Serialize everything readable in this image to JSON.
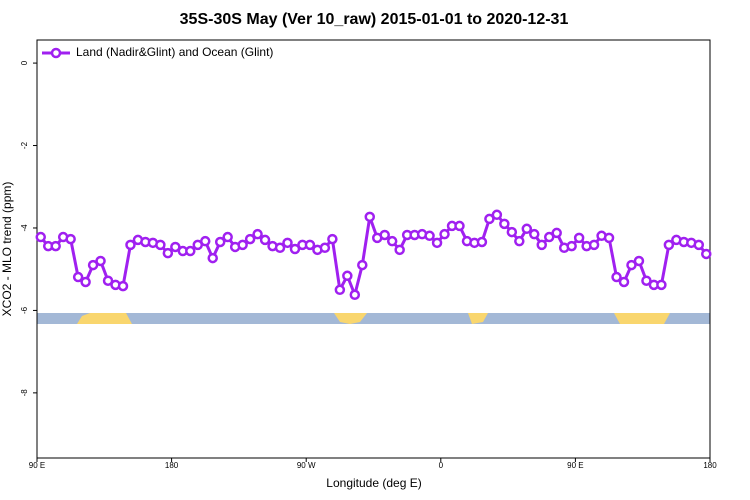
{
  "chart_data": {
    "type": "line",
    "title": "35S-30S May (Ver 10_raw)   2015-01-01 to 2020-12-31",
    "x_label": "Longitude (deg E)",
    "y_label": "XCO2 - MLO trend (ppm)",
    "legend": "top-left",
    "xlim": [
      90,
      540
    ],
    "xticks": [
      {
        "value": 90,
        "label": "90 E"
      },
      180,
      {
        "value": 270,
        "label": "90 W"
      },
      {
        "value": 360,
        "label": "0"
      },
      {
        "value": 450,
        "label": "90 E"
      },
      {
        "value": 540,
        "label": "180"
      }
    ],
    "ylim": [
      -9.58,
      0.56
    ],
    "yticks": [
      0,
      -2,
      -4,
      -6,
      -8
    ],
    "x": [
      92.5,
      97.5,
      102.5,
      107.5,
      112.5,
      117.5,
      122.5,
      127.5,
      132.5,
      137.5,
      142.5,
      147.5,
      152.5,
      157.5,
      162.5,
      167.5,
      172.5,
      177.5,
      182.5,
      187.5,
      192.5,
      197.5,
      202.5,
      207.5,
      212.5,
      217.5,
      222.5,
      227.5,
      232.5,
      237.5,
      242.5,
      247.5,
      252.5,
      257.5,
      262.5,
      267.5,
      272.5,
      277.5,
      282.5,
      287.5,
      292.5,
      297.5,
      302.5,
      307.5,
      312.5,
      317.5,
      322.5,
      327.5,
      332.5,
      337.5,
      342.5,
      347.5,
      352.5,
      357.5,
      362.5,
      367.5,
      372.5,
      377.5,
      382.5,
      387.5,
      392.5,
      397.5,
      402.5,
      407.5,
      412.5,
      417.5,
      422.5,
      427.5,
      432.5,
      437.5,
      442.5,
      447.5,
      452.5,
      457.5,
      462.5,
      467.5,
      472.5,
      477.5,
      482.5,
      487.5,
      492.5,
      497.5,
      502.5,
      507.5,
      512.5,
      517.5,
      522.5,
      527.5,
      532.5,
      537.5
    ],
    "series": [
      {
        "name": "Land (Nadir&Glint) and Ocean (Glint)",
        "color": "#a020f0",
        "values": [
          -4.22,
          -4.44,
          -4.44,
          -4.22,
          -4.27,
          -5.19,
          -5.31,
          -4.9,
          -4.8,
          -5.28,
          -5.38,
          -5.41,
          -4.41,
          -4.29,
          -4.34,
          -4.36,
          -4.41,
          -4.61,
          -4.46,
          -4.56,
          -4.56,
          -4.41,
          -4.32,
          -4.73,
          -4.34,
          -4.22,
          -4.46,
          -4.41,
          -4.27,
          -4.15,
          -4.29,
          -4.44,
          -4.48,
          -4.36,
          -4.51,
          -4.41,
          -4.41,
          -4.53,
          -4.48,
          -4.27,
          -5.5,
          -5.16,
          -5.62,
          -4.9,
          -3.73,
          -4.24,
          -4.17,
          -4.32,
          -4.53,
          -4.17,
          -4.17,
          -4.15,
          -4.19,
          -4.36,
          -4.15,
          -3.95,
          -3.95,
          -4.32,
          -4.36,
          -4.34,
          -3.78,
          -3.68,
          -3.9,
          -4.1,
          -4.32,
          -4.02,
          -4.15,
          -4.41,
          -4.22,
          -4.12,
          -4.48,
          -4.44,
          -4.24,
          -4.44,
          -4.41,
          -4.19,
          -4.24,
          -5.19,
          -5.31,
          -4.9,
          -4.8,
          -5.28,
          -5.38,
          -5.38,
          -4.41,
          -4.29,
          -4.34,
          -4.36,
          -4.41,
          -4.63
        ]
      }
    ]
  }
}
